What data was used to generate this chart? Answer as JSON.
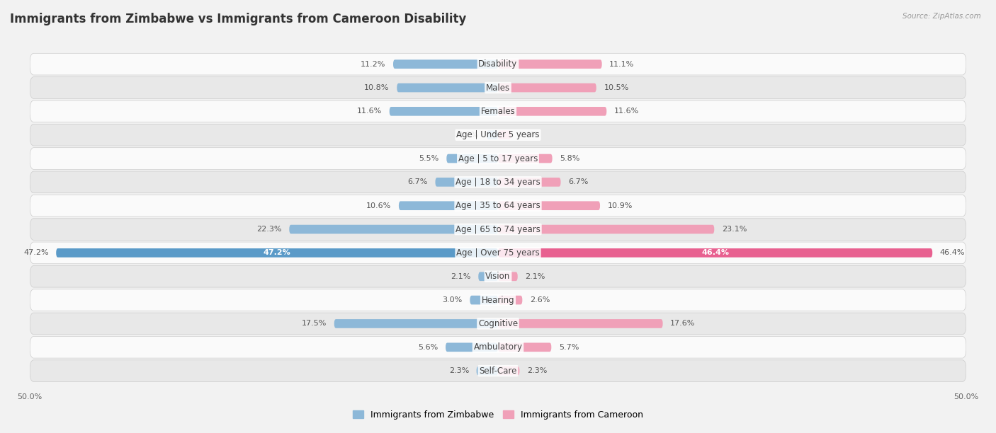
{
  "title": "Immigrants from Zimbabwe vs Immigrants from Cameroon Disability",
  "source": "Source: ZipAtlas.com",
  "categories": [
    "Disability",
    "Males",
    "Females",
    "Age | Under 5 years",
    "Age | 5 to 17 years",
    "Age | 18 to 34 years",
    "Age | 35 to 64 years",
    "Age | 65 to 74 years",
    "Age | Over 75 years",
    "Vision",
    "Hearing",
    "Cognitive",
    "Ambulatory",
    "Self-Care"
  ],
  "zimbabwe_values": [
    11.2,
    10.8,
    11.6,
    1.2,
    5.5,
    6.7,
    10.6,
    22.3,
    47.2,
    2.1,
    3.0,
    17.5,
    5.6,
    2.3
  ],
  "cameroon_values": [
    11.1,
    10.5,
    11.6,
    1.4,
    5.8,
    6.7,
    10.9,
    23.1,
    46.4,
    2.1,
    2.6,
    17.6,
    5.7,
    2.3
  ],
  "zimbabwe_color": "#8db8d8",
  "cameroon_color": "#f0a0b8",
  "zimbabwe_color_dark": "#5a9ac8",
  "cameroon_color_dark": "#e86090",
  "zimbabwe_label": "Immigrants from Zimbabwe",
  "cameroon_label": "Immigrants from Cameroon",
  "axis_max": 50.0,
  "bg_color": "#f2f2f2",
  "row_bg_light": "#fafafa",
  "row_bg_dark": "#e8e8e8",
  "title_fontsize": 12,
  "label_fontsize": 8.5,
  "value_fontsize": 8,
  "tick_fontsize": 8,
  "legend_fontsize": 9
}
